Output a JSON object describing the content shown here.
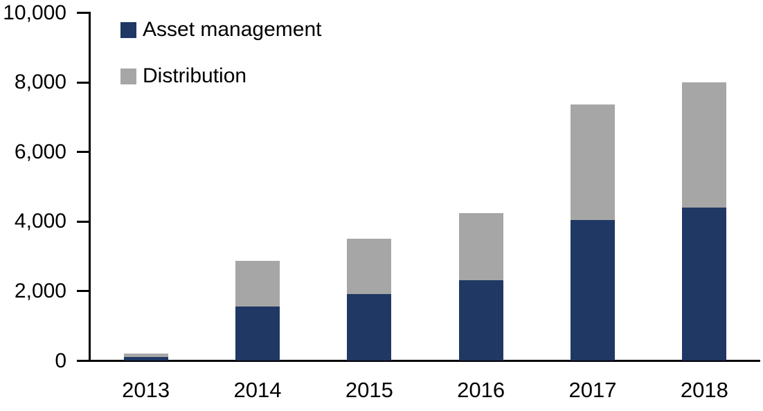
{
  "chart_data": {
    "type": "bar",
    "stacked": true,
    "title": "",
    "xlabel": "",
    "ylabel": "",
    "categories": [
      "2013",
      "2014",
      "2015",
      "2016",
      "2017",
      "2018"
    ],
    "series": [
      {
        "name": "Asset management",
        "color": "#1F3864",
        "values": [
          110,
          1570,
          1920,
          2320,
          4040,
          4410
        ]
      },
      {
        "name": "Distribution",
        "color": "#A6A6A6",
        "values": [
          100,
          1300,
          1590,
          1920,
          3320,
          3590
        ]
      }
    ],
    "totals": [
      210,
      2870,
      3510,
      4240,
      7360,
      8000
    ],
    "ylim": [
      0,
      10000
    ],
    "ytick_interval": 2000,
    "ytick_labels": [
      "0",
      "2,000",
      "4,000",
      "6,000",
      "8,000",
      "10,000"
    ],
    "grid": false,
    "legend_position": "top-left",
    "axis_color": "#000000",
    "background_color": "#FFFFFF"
  }
}
